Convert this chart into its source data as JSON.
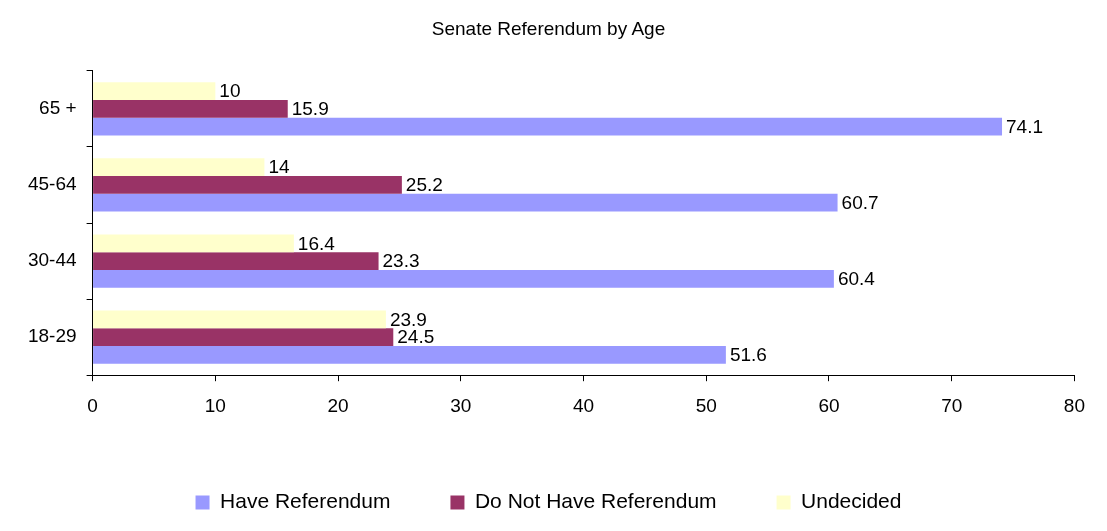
{
  "chart_data": {
    "type": "bar",
    "orientation": "horizontal",
    "title": "Senate Referendum by Age",
    "categories": [
      "65 +",
      "45-64",
      "30-44",
      "18-29"
    ],
    "series": [
      {
        "name": "Have Referendum",
        "color": "#9999ff",
        "values": [
          74.1,
          60.7,
          60.4,
          51.6
        ]
      },
      {
        "name": "Do Not Have Referendum",
        "color": "#993366",
        "values": [
          15.9,
          25.2,
          23.3,
          24.5
        ]
      },
      {
        "name": "Undecided",
        "color": "#ffffcc",
        "values": [
          10,
          14,
          16.4,
          23.9
        ]
      }
    ],
    "xlim": [
      0,
      80
    ],
    "xticks": [
      0,
      10,
      20,
      30,
      40,
      50,
      60,
      70,
      80
    ],
    "grid": false,
    "legend": "bottom",
    "data_labels": true
  }
}
